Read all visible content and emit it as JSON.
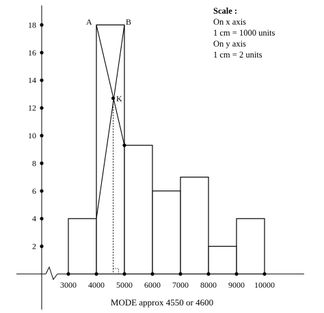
{
  "chart_data": {
    "type": "bar",
    "categories": [
      "3000-4000",
      "4000-5000",
      "5000-6000",
      "6000-7000",
      "7000-8000",
      "8000-9000",
      "9000-10000"
    ],
    "bins": [
      {
        "from": 3000,
        "to": 4000,
        "value": 4
      },
      {
        "from": 4000,
        "to": 5000,
        "value": 18
      },
      {
        "from": 5000,
        "to": 6000,
        "value": 9.3
      },
      {
        "from": 6000,
        "to": 7000,
        "value": 6
      },
      {
        "from": 7000,
        "to": 8000,
        "value": 7
      },
      {
        "from": 8000,
        "to": 9000,
        "value": 2
      },
      {
        "from": 9000,
        "to": 10000,
        "value": 4
      }
    ],
    "x_ticks": [
      "3000",
      "4000",
      "5000",
      "6000",
      "7000",
      "8000",
      "9000",
      "10000"
    ],
    "y_ticks": [
      "2",
      "4",
      "6",
      "8",
      "10",
      "12",
      "14",
      "16",
      "18"
    ],
    "ylim": [
      0,
      19
    ],
    "xlim": [
      2000,
      11000
    ],
    "point_labels": {
      "a": "A",
      "b": "B",
      "k": "K"
    },
    "mode_x": 4600,
    "mode_y": 12.7,
    "caption": "MODE approx 4550 or 4600",
    "scale": {
      "title": "Scale :",
      "lines": [
        "On x axis",
        "1 cm = 1000 units",
        "On y axis",
        "1 cm = 2 units"
      ]
    }
  }
}
